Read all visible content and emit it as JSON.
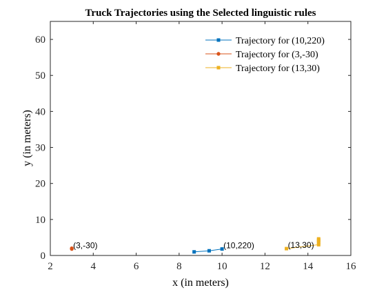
{
  "chart_data": {
    "type": "line",
    "title": "Truck Trajectories using the Selected linguistic rules",
    "xlabel": "x (in meters)",
    "ylabel": "y (in meters)",
    "xlim": [
      2,
      16
    ],
    "ylim": [
      0,
      65
    ],
    "xticks": [
      2,
      4,
      6,
      8,
      10,
      12,
      14,
      16
    ],
    "yticks": [
      0,
      10,
      20,
      30,
      40,
      50,
      60
    ],
    "grid": false,
    "legend_position": "top-right",
    "series": [
      {
        "name": "Trajectory for (10,220)",
        "color": "#0072BD",
        "marker": "square",
        "x": [
          10.0,
          9.4,
          8.7
        ],
        "y": [
          1.8,
          1.3,
          1.0
        ]
      },
      {
        "name": "Trajectory for (3,-30)",
        "color": "#D95319",
        "marker": "circle",
        "x": [
          3.0,
          3.0
        ],
        "y": [
          1.8,
          2.0
        ]
      },
      {
        "name": "Trajectory for (13,30)",
        "color": "#EDB120",
        "marker": "square",
        "x": [
          13.0,
          14.5,
          14.5,
          14.5,
          14.5,
          14.5
        ],
        "y": [
          1.9,
          3.0,
          3.5,
          4.0,
          4.3,
          4.6
        ]
      }
    ],
    "annotations": [
      {
        "text": "(10,220)",
        "x": 10.0,
        "y": 1.8
      },
      {
        "text": "(3,-30)",
        "x": 3.0,
        "y": 1.8
      },
      {
        "text": "(13,30)",
        "x": 13.0,
        "y": 1.9
      }
    ]
  }
}
